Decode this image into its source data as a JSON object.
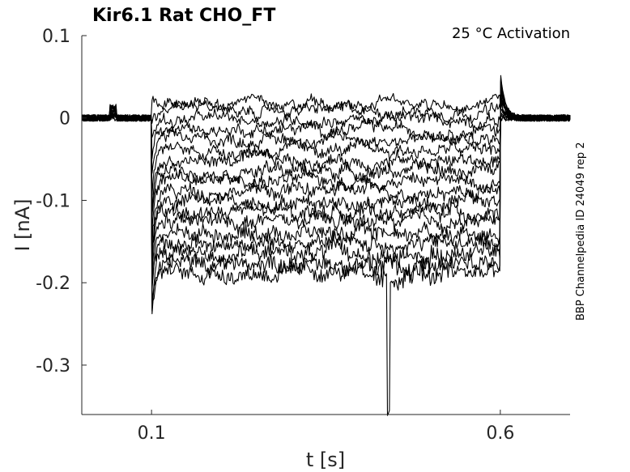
{
  "chart_data": {
    "type": "line",
    "title": "Kir6.1  Rat  CHO_FT",
    "annotation": "25 °C  Activation",
    "side_label": "BBP Channelpedia ID 24049 rep 2",
    "xlabel": "t [s]",
    "ylabel": "I [nA]",
    "xlim": [
      0.0,
      0.7
    ],
    "ylim": [
      -0.36,
      0.1
    ],
    "x_ticks": [
      {
        "value": 0.1,
        "label": "0.1"
      },
      {
        "value": 0.6,
        "label": "0.6"
      }
    ],
    "y_ticks": [
      {
        "value": 0.1,
        "label": "0.1"
      },
      {
        "value": 0.0,
        "label": "0"
      },
      {
        "value": -0.1,
        "label": "-0.1"
      },
      {
        "value": -0.2,
        "label": "-0.2"
      },
      {
        "value": -0.3,
        "label": "-0.3"
      }
    ],
    "grid": false,
    "step_start": 0.1,
    "step_end": 0.6,
    "baseline": 0.0,
    "series_step_levels": [
      0.02,
      0.009,
      -0.002,
      -0.014,
      -0.026,
      -0.039,
      -0.052,
      -0.064,
      -0.076,
      -0.088,
      -0.101,
      -0.114,
      -0.126,
      -0.139,
      -0.152,
      -0.164,
      -0.176,
      -0.188
    ],
    "peak_min": -0.245,
    "spike_min": -0.355,
    "spike_t": 0.44,
    "tail_peak": 0.058,
    "color": "#000000"
  }
}
